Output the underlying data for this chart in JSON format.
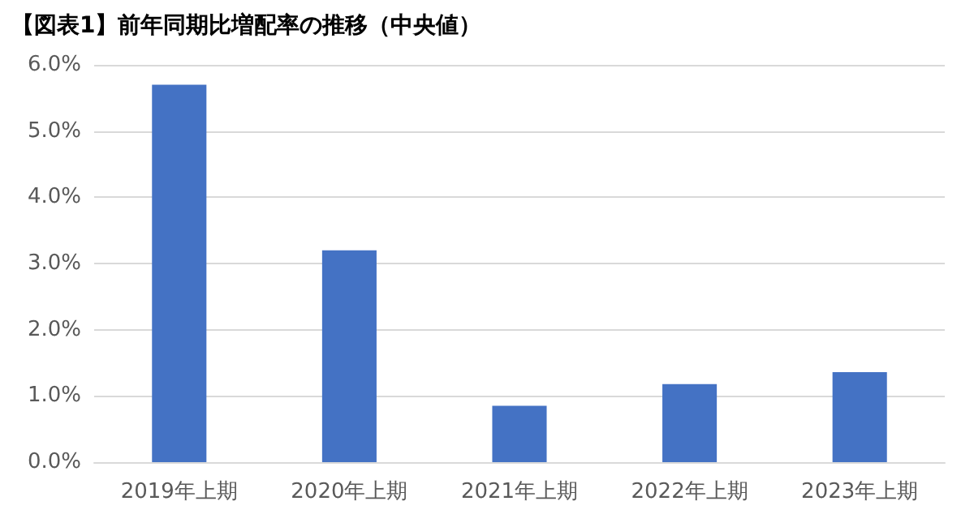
{
  "chart_data": {
    "type": "bar",
    "title": "【図表1】前年同期比増配率の推移（中央値）",
    "categories": [
      "2019年上期",
      "2020年上期",
      "2021年上期",
      "2022年上期",
      "2023年上期"
    ],
    "values": [
      5.7,
      3.2,
      0.85,
      1.18,
      1.36
    ],
    "color": "#4472c4",
    "ylim": [
      0,
      6
    ],
    "yticks": [
      {
        "value": 0,
        "label": "0.0%"
      },
      {
        "value": 1,
        "label": "1.0%"
      },
      {
        "value": 2,
        "label": "2.0%"
      },
      {
        "value": 3,
        "label": "3.0%"
      },
      {
        "value": 4,
        "label": "4.0%"
      },
      {
        "value": 5,
        "label": "5.0%"
      },
      {
        "value": 6,
        "label": "6.0%"
      }
    ],
    "grid": "y"
  }
}
